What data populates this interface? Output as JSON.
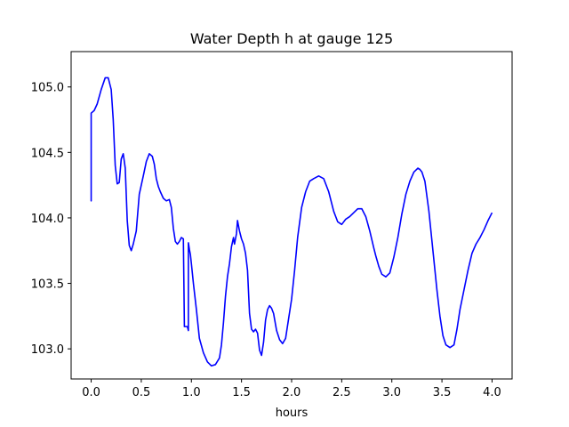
{
  "chart_data": {
    "type": "line",
    "title": "Water Depth h at gauge 125",
    "xlabel": "hours",
    "ylabel": "",
    "xlim": [
      -0.2,
      4.2
    ],
    "ylim": [
      102.77,
      105.27
    ],
    "xticks": [
      0.0,
      0.5,
      1.0,
      1.5,
      2.0,
      2.5,
      3.0,
      3.5,
      4.0
    ],
    "xtick_labels": [
      "0.0",
      "0.5",
      "1.0",
      "1.5",
      "2.0",
      "2.5",
      "3.0",
      "3.5",
      "4.0"
    ],
    "yticks": [
      103.0,
      103.5,
      104.0,
      104.5,
      105.0
    ],
    "ytick_labels": [
      "103.0",
      "103.5",
      "104.0",
      "104.5",
      "105.0"
    ],
    "grid": false,
    "series": [
      {
        "color": "#0000ff",
        "x": [
          0.0,
          0.0,
          0.0,
          0.0,
          0.03,
          0.06,
          0.1,
          0.14,
          0.17,
          0.2,
          0.22,
          0.24,
          0.26,
          0.28,
          0.3,
          0.32,
          0.34,
          0.36,
          0.38,
          0.4,
          0.42,
          0.45,
          0.48,
          0.52,
          0.55,
          0.58,
          0.61,
          0.63,
          0.65,
          0.67,
          0.69,
          0.72,
          0.75,
          0.78,
          0.8,
          0.82,
          0.84,
          0.86,
          0.88,
          0.9,
          0.92,
          0.93,
          0.93,
          0.96,
          0.97,
          0.97,
          0.98,
          0.99,
          1.0,
          1.02,
          1.05,
          1.08,
          1.12,
          1.16,
          1.2,
          1.24,
          1.28,
          1.3,
          1.32,
          1.34,
          1.36,
          1.38,
          1.4,
          1.42,
          1.43,
          1.44,
          1.45,
          1.46,
          1.48,
          1.5,
          1.52,
          1.54,
          1.56,
          1.58,
          1.6,
          1.62,
          1.64,
          1.66,
          1.68,
          1.7,
          1.72,
          1.74,
          1.76,
          1.78,
          1.8,
          1.82,
          1.85,
          1.88,
          1.91,
          1.94,
          1.97,
          2.0,
          2.03,
          2.06,
          2.1,
          2.14,
          2.18,
          2.22,
          2.27,
          2.32,
          2.37,
          2.42,
          2.46,
          2.5,
          2.54,
          2.58,
          2.62,
          2.66,
          2.7,
          2.74,
          2.78,
          2.82,
          2.84,
          2.87,
          2.9,
          2.94,
          2.98,
          3.02,
          3.06,
          3.1,
          3.14,
          3.18,
          3.22,
          3.26,
          3.28,
          3.3,
          3.33,
          3.37,
          3.41,
          3.45,
          3.48,
          3.51,
          3.54,
          3.58,
          3.62,
          3.65,
          3.68,
          3.72,
          3.76,
          3.8,
          3.84,
          3.88,
          3.92,
          3.96,
          4.0
        ],
        "y": [
          104.13,
          104.53,
          104.13,
          104.8,
          104.82,
          104.87,
          104.98,
          105.07,
          105.07,
          104.98,
          104.75,
          104.4,
          104.26,
          104.27,
          104.45,
          104.49,
          104.38,
          103.98,
          103.79,
          103.75,
          103.8,
          103.9,
          104.18,
          104.32,
          104.43,
          104.49,
          104.47,
          104.41,
          104.3,
          104.24,
          104.2,
          104.15,
          104.13,
          104.14,
          104.08,
          103.92,
          103.82,
          103.8,
          103.82,
          103.85,
          103.84,
          103.18,
          103.17,
          103.17,
          103.14,
          103.81,
          103.76,
          103.72,
          103.65,
          103.5,
          103.3,
          103.08,
          102.97,
          102.9,
          102.87,
          102.88,
          102.93,
          103.03,
          103.2,
          103.4,
          103.55,
          103.65,
          103.78,
          103.85,
          103.8,
          103.84,
          103.88,
          103.98,
          103.9,
          103.84,
          103.8,
          103.73,
          103.6,
          103.27,
          103.15,
          103.13,
          103.15,
          103.12,
          102.99,
          102.95,
          103.05,
          103.22,
          103.3,
          103.33,
          103.31,
          103.27,
          103.14,
          103.07,
          103.04,
          103.08,
          103.23,
          103.38,
          103.6,
          103.85,
          104.08,
          104.2,
          104.28,
          104.3,
          104.32,
          104.3,
          104.2,
          104.05,
          103.97,
          103.95,
          103.99,
          104.01,
          104.04,
          104.07,
          104.07,
          104.01,
          103.9,
          103.77,
          103.71,
          103.63,
          103.57,
          103.55,
          103.58,
          103.7,
          103.85,
          104.03,
          104.18,
          104.28,
          104.35,
          104.38,
          104.37,
          104.35,
          104.28,
          104.05,
          103.75,
          103.45,
          103.25,
          103.1,
          103.03,
          103.01,
          103.03,
          103.15,
          103.3,
          103.45,
          103.6,
          103.73,
          103.8,
          103.85,
          103.91,
          103.98,
          104.04
        ]
      }
    ]
  }
}
